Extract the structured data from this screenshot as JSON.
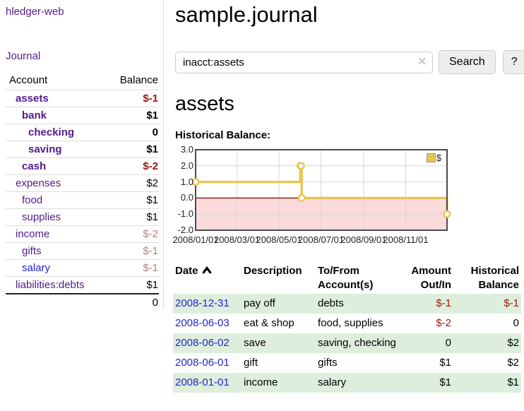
{
  "app": {
    "brand": "hledger-web",
    "nav_journal": "Journal"
  },
  "sidebar": {
    "headers": {
      "account": "Account",
      "balance": "Balance"
    },
    "rows": [
      {
        "name": "assets",
        "depth": 1,
        "bold": true,
        "balance": "$-1",
        "tone": "neg"
      },
      {
        "name": "bank",
        "depth": 2,
        "bold": true,
        "balance": "$1",
        "tone": ""
      },
      {
        "name": "checking",
        "depth": 3,
        "bold": true,
        "balance": "0",
        "tone": ""
      },
      {
        "name": "saving",
        "depth": 3,
        "bold": true,
        "balance": "$1",
        "tone": ""
      },
      {
        "name": "cash",
        "depth": 2,
        "bold": true,
        "balance": "$-2",
        "tone": "neg"
      },
      {
        "name": "expenses",
        "depth": 1,
        "bold": false,
        "balance": "$2",
        "tone": ""
      },
      {
        "name": "food",
        "depth": 2,
        "bold": false,
        "balance": "$1",
        "tone": ""
      },
      {
        "name": "supplies",
        "depth": 2,
        "bold": false,
        "balance": "$1",
        "tone": ""
      },
      {
        "name": "income",
        "depth": 1,
        "bold": false,
        "balance": "$-2",
        "tone": "negmuted"
      },
      {
        "name": "gifts",
        "depth": 2,
        "bold": false,
        "balance": "$-1",
        "tone": "negmuted"
      },
      {
        "name": "salary",
        "depth": 2,
        "bold": false,
        "balance": "$-1",
        "tone": "negmuted",
        "link_tone": "unvisited"
      },
      {
        "name": "liabilities:debts",
        "depth": 1,
        "bold": false,
        "balance": "$1",
        "tone": ""
      }
    ],
    "total": "0"
  },
  "header": {
    "title": "sample.journal"
  },
  "search": {
    "value": "inacct:assets",
    "clear_icon": "✕",
    "button": "Search",
    "help_button": "?"
  },
  "account_page": {
    "title": "assets",
    "chart_label": "Historical Balance:"
  },
  "chart_data": {
    "type": "line",
    "subtype": "step-after",
    "title": "Historical Balance",
    "series": [
      {
        "name": "$",
        "color": "#e9c44d",
        "points": [
          [
            "2008-01-01",
            1
          ],
          [
            "2008-06-01",
            2
          ],
          [
            "2008-06-02",
            2
          ],
          [
            "2008-06-03",
            0
          ],
          [
            "2008-12-31",
            -1
          ]
        ]
      }
    ],
    "ylim": [
      -2,
      3
    ],
    "yticks": [
      "3.0",
      "2.0",
      "1.0",
      "0.0",
      "-1.0",
      "-2.0"
    ],
    "xlim": [
      "2008-01-01",
      "2008-12-31"
    ],
    "xticks": [
      "2008/01/01",
      "2008/03/01",
      "2008/05/01",
      "2008/07/01",
      "2008/09/01",
      "2008/11/01"
    ],
    "legend": "$",
    "legend_position": "top-right",
    "grid": true,
    "negative_region_fill": "#fadada",
    "zero_line_color": "#8b0000",
    "grid_color": "#d7d7d7",
    "border_color": "#4a4a4a"
  },
  "register": {
    "headers": [
      {
        "label": "Date",
        "sorted": "asc"
      },
      {
        "label": "Description"
      },
      {
        "label": "To/From Account(s)"
      },
      {
        "label": "Amount Out/In"
      },
      {
        "label": "Historical Balance"
      }
    ],
    "rows": [
      {
        "date": "2008-12-31",
        "description": "pay off",
        "accounts": "debts",
        "amount": "$-1",
        "balance": "$-1"
      },
      {
        "date": "2008-06-03",
        "description": "eat & shop",
        "accounts": "food, supplies",
        "amount": "$-2",
        "balance": "0"
      },
      {
        "date": "2008-06-02",
        "description": "save",
        "accounts": "saving, checking",
        "amount": "0",
        "balance": "$2"
      },
      {
        "date": "2008-06-01",
        "description": "gift",
        "accounts": "gifts",
        "amount": "$1",
        "balance": "$2"
      },
      {
        "date": "2008-01-01",
        "description": "income",
        "accounts": "salary",
        "amount": "$1",
        "balance": "$1"
      }
    ]
  },
  "colors": {
    "link_purple": "#551a8b",
    "link_blue": "#2424d0",
    "negative_strong": "#9b1515",
    "negative_muted": "#b97f7f",
    "row_stripe_green": "#ddeedd",
    "series_yellow": "#e9c44d"
  }
}
